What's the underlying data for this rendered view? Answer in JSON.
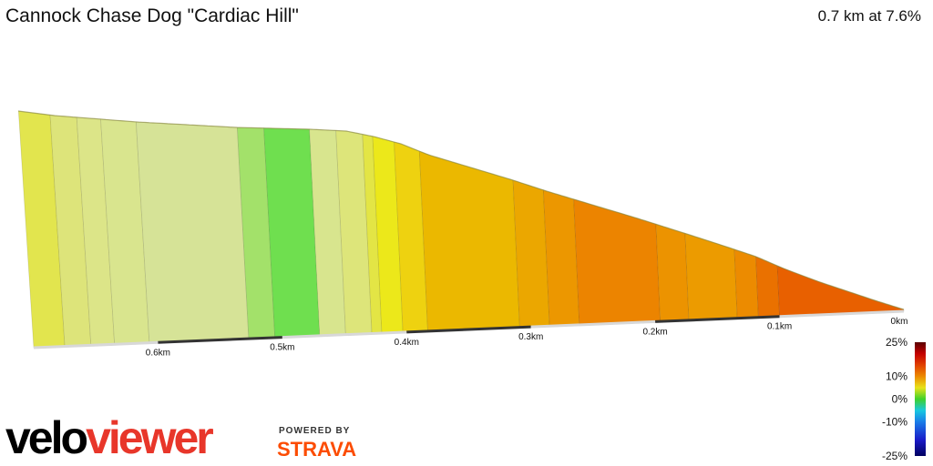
{
  "header": {
    "title": "Cannock Chase Dog \"Cardiac Hill\"",
    "summary": "0.7 km at 7.6%"
  },
  "chart_data": {
    "type": "area",
    "title": "Cannock Chase Dog \"Cardiac Hill\"",
    "x_direction": "reversed",
    "x_unit": "km",
    "x_ticks": [
      "0km",
      "0.1km",
      "0.2km",
      "0.3km",
      "0.4km",
      "0.5km",
      "0.6km"
    ],
    "tick_values": [
      0,
      0.1,
      0.2,
      0.3,
      0.4,
      0.5,
      0.6
    ],
    "total_distance_km": 0.7,
    "average_gradient_pct": 7.6,
    "segments": [
      {
        "from": 0.7,
        "to": 0.675,
        "color": "#e2e54e"
      },
      {
        "from": 0.675,
        "to": 0.654,
        "color": "#dde47a"
      },
      {
        "from": 0.654,
        "to": 0.635,
        "color": "#dce588"
      },
      {
        "from": 0.635,
        "to": 0.607,
        "color": "#d9e58e"
      },
      {
        "from": 0.607,
        "to": 0.527,
        "color": "#d6e397"
      },
      {
        "from": 0.527,
        "to": 0.506,
        "color": "#a3e16a"
      },
      {
        "from": 0.506,
        "to": 0.47,
        "color": "#6fdf4f"
      },
      {
        "from": 0.47,
        "to": 0.449,
        "color": "#d8e58e"
      },
      {
        "from": 0.449,
        "to": 0.428,
        "color": "#dde57a"
      },
      {
        "from": 0.428,
        "to": 0.42,
        "color": "#e3e545"
      },
      {
        "from": 0.42,
        "to": 0.403,
        "color": "#ece81a"
      },
      {
        "from": 0.403,
        "to": 0.383,
        "color": "#eed210"
      },
      {
        "from": 0.383,
        "to": 0.309,
        "color": "#ebb800"
      },
      {
        "from": 0.309,
        "to": 0.285,
        "color": "#eba700"
      },
      {
        "from": 0.285,
        "to": 0.261,
        "color": "#ec9700"
      },
      {
        "from": 0.261,
        "to": 0.196,
        "color": "#ec8400"
      },
      {
        "from": 0.196,
        "to": 0.173,
        "color": "#ec9300"
      },
      {
        "from": 0.173,
        "to": 0.134,
        "color": "#ec9b00"
      },
      {
        "from": 0.134,
        "to": 0.117,
        "color": "#ec8b00"
      },
      {
        "from": 0.117,
        "to": 0.1,
        "color": "#ea7100"
      },
      {
        "from": 0.1,
        "to": 0.0,
        "color": "#e86000"
      }
    ],
    "legend": {
      "labels": [
        "25%",
        "10%",
        "0%",
        "-10%",
        "-25%"
      ],
      "values": [
        25,
        10,
        0,
        -10,
        -25
      ],
      "stops": [
        {
          "value": 25,
          "color": "#5a0000"
        },
        {
          "value": 20,
          "color": "#c40000"
        },
        {
          "value": 15,
          "color": "#e04000"
        },
        {
          "value": 10,
          "color": "#ec8a00"
        },
        {
          "value": 5,
          "color": "#e8e31a"
        },
        {
          "value": 0,
          "color": "#3fd12a"
        },
        {
          "value": -5,
          "color": "#18c8e0"
        },
        {
          "value": -10,
          "color": "#1a7de8"
        },
        {
          "value": -18,
          "color": "#1a1ac8"
        },
        {
          "value": -25,
          "color": "#000060"
        }
      ]
    }
  },
  "branding": {
    "logo_part1": "velo",
    "logo_part2": "viewer",
    "powered_by": "POWERED BY",
    "strava": "STRAVA"
  }
}
